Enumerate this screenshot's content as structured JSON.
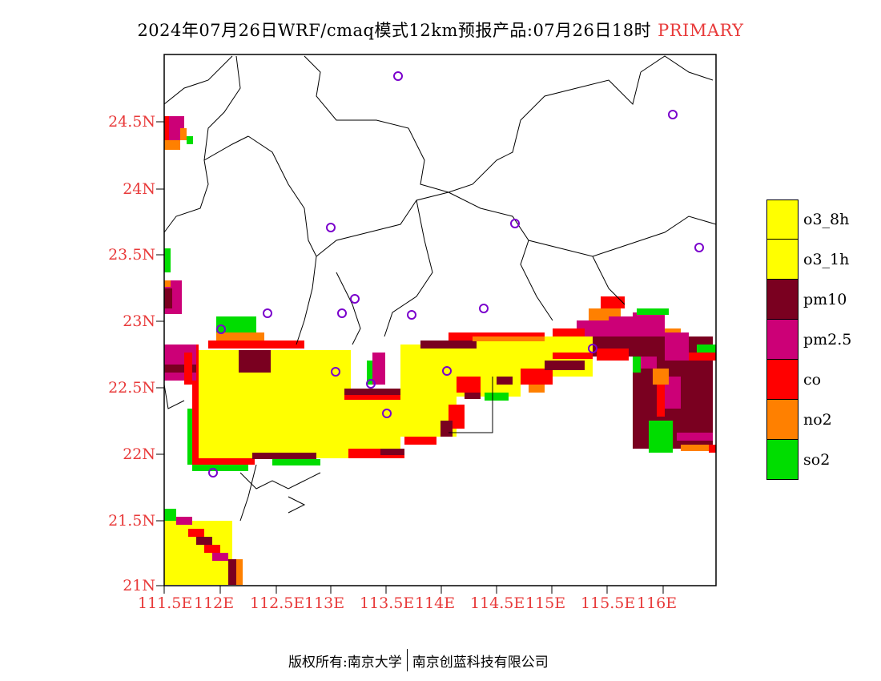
{
  "title": {
    "main": "2024年07月26日WRF/cmaq模式12km预报产品:07月26日18时",
    "tag": "PRIMARY"
  },
  "map": {
    "lat_ticks": [
      "24.5N",
      "24N",
      "23.5N",
      "23N",
      "22.5N",
      "22N",
      "21.5N",
      "21N"
    ],
    "lon_ticks": [
      "111.5E",
      "112E",
      "112.5E",
      "113E",
      "113.5E",
      "114E",
      "114.5E",
      "115E",
      "115.5E",
      "116E"
    ]
  },
  "legend": [
    {
      "label": "o3_8h",
      "color": "#ffff00"
    },
    {
      "label": "o3_1h",
      "color": "#ffff00"
    },
    {
      "label": "pm10",
      "color": "#7a0020"
    },
    {
      "label": "pm2.5",
      "color": "#cc0077"
    },
    {
      "label": "co",
      "color": "#ff0000"
    },
    {
      "label": "no2",
      "color": "#ff8000"
    },
    {
      "label": "so2",
      "color": "#00dd00"
    }
  ],
  "footer": {
    "left": "版权所有:南京大学",
    "right": "南京创蓝科技有限公司"
  }
}
